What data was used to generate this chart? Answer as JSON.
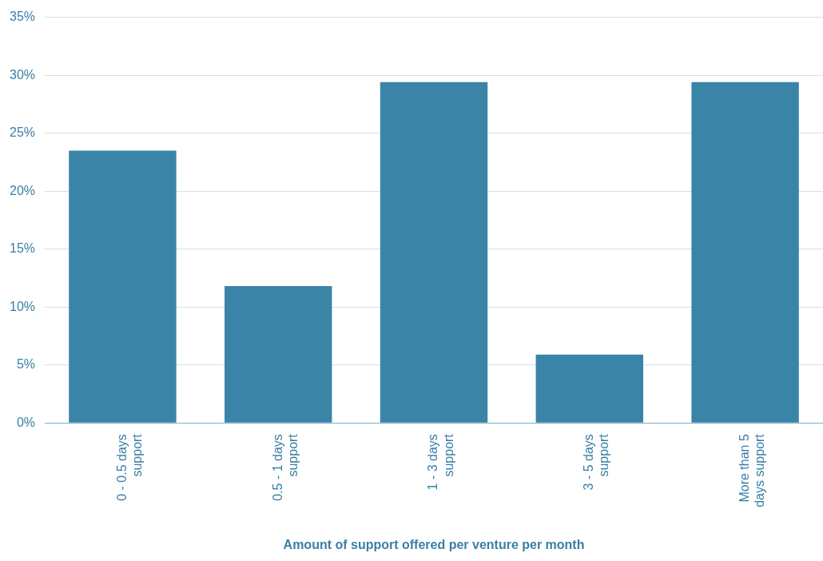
{
  "chart_data": {
    "type": "bar",
    "xlabel": "Amount of support offered per venture per month",
    "categories": [
      "0 - 0.5 days support",
      "0.5 - 1 days support",
      "1 - 3 days support",
      "3 - 5 days support",
      "More than 5 days support"
    ],
    "values": [
      23.5,
      11.8,
      29.4,
      5.9,
      29.4
    ],
    "color": "#3a84a8",
    "ylim": [
      0,
      35
    ],
    "yticks": [
      {
        "value": 0,
        "label": "0%"
      },
      {
        "value": 5,
        "label": "5%"
      },
      {
        "value": 10,
        "label": "10%"
      },
      {
        "value": 15,
        "label": "15%"
      },
      {
        "value": 20,
        "label": "20%"
      },
      {
        "value": 25,
        "label": "25%"
      },
      {
        "value": 30,
        "label": "30%"
      },
      {
        "value": 35,
        "label": "35%"
      }
    ],
    "grid": "y",
    "legend": false
  }
}
